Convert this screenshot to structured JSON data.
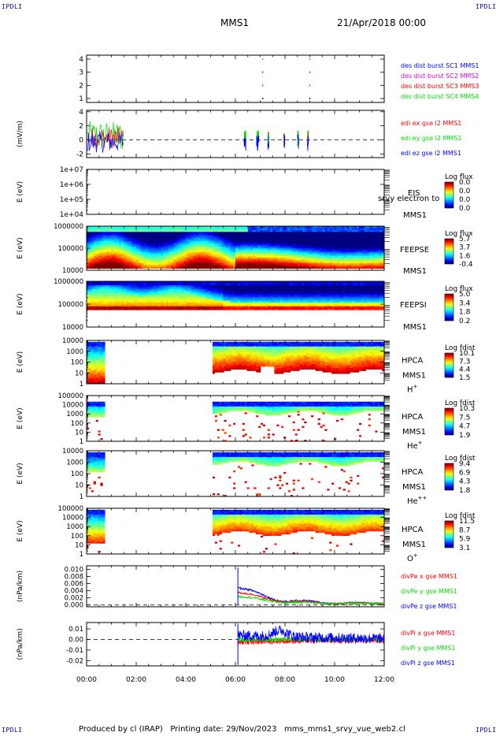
{
  "header": {
    "corner_tl": "IPDLI",
    "corner_tr": "IPDLI",
    "corner_bl": "IPDLI",
    "corner_br": "IPDLI",
    "spacecraft": "MMS1",
    "date": "21/Apr/2018 00:00"
  },
  "footer": {
    "text": "Produced by cl (IRAP)   Printing date: 29/Nov/2023   mms_mms1_srvy_vue_web2.cl"
  },
  "colors": {
    "mms1": "#0000ff",
    "mms2": "#dd00dd",
    "mms3": "#ff0000",
    "mms4": "#00dd00",
    "ex": "#ff0000",
    "ey": "#00dd00",
    "ez": "#0000ff"
  },
  "chart_data": [
    {
      "type": "scatter",
      "panel": "burst",
      "yticks": [
        "1",
        "2",
        "3",
        "4"
      ],
      "ylim": [
        0.7,
        4.3
      ],
      "series": [
        {
          "name": "des dist burst SC1 MMS1",
          "x": [
            7.1,
            9.0
          ],
          "y": [
            1,
            1
          ]
        },
        {
          "name": "des dist burst SC2 MMS2",
          "x": [
            7.1,
            9.0
          ],
          "y": [
            2,
            2
          ]
        },
        {
          "name": "des dist burst SC3 MMS3",
          "x": [
            7.1,
            9.0
          ],
          "y": [
            3,
            3
          ]
        },
        {
          "name": "des dist burst SC4 MMS4",
          "x": [
            7.1,
            9.0
          ],
          "y": [
            4,
            4
          ]
        }
      ]
    },
    {
      "type": "line",
      "panel": "edi",
      "ylabel": "(mV/m)",
      "yticks": [
        "-2",
        "0",
        "2",
        "4"
      ],
      "ylim": [
        -2.5,
        4.2
      ],
      "series": [
        {
          "name": "edi ex gse l2 MMS1"
        },
        {
          "name": "edi ey gse l2 MMS1"
        },
        {
          "name": "edi ez gse l2 MMS1"
        }
      ]
    },
    {
      "type": "heatmap",
      "panel": "eis",
      "ylabel": "E (eV)",
      "yticks": [
        "1e+04",
        "1e+05",
        "1e+06",
        "1e+07"
      ],
      "instrument": [
        "EIS",
        "MMS1"
      ],
      "overlay_text": "srvy electron to",
      "colorbar_title": "Log flux",
      "colorbar_ticks": [
        "0.0",
        "0.0",
        "0.0",
        "0.0"
      ]
    },
    {
      "type": "heatmap",
      "panel": "feepse",
      "ylabel": "E (eV)",
      "yticks": [
        "10000",
        "100000",
        "1000000"
      ],
      "instrument": [
        "FEEPSE",
        "MMS1"
      ],
      "colorbar_title": "Log flux",
      "colorbar_ticks": [
        "5.7",
        "3.7",
        "1.6",
        "-0.4"
      ]
    },
    {
      "type": "heatmap",
      "panel": "feepsi",
      "ylabel": "E (eV)",
      "yticks": [
        "10000",
        "100000",
        "1000000"
      ],
      "instrument": [
        "FEEPSI",
        "MMS1"
      ],
      "colorbar_title": "Log flux",
      "colorbar_ticks": [
        "5.0",
        "3.4",
        "1.8",
        "0.2"
      ]
    },
    {
      "type": "heatmap",
      "panel": "hpca-h",
      "ylabel": "E (eV)",
      "yticks": [
        "1",
        "10",
        "100",
        "1000",
        "10000"
      ],
      "instrument": [
        "HPCA",
        "MMS1"
      ],
      "species": "H",
      "charge": "+",
      "colorbar_title": "Log fdist",
      "colorbar_ticks": [
        "10.1",
        "7.3",
        "4.4",
        "1.5"
      ]
    },
    {
      "type": "heatmap",
      "panel": "hpca-he",
      "ylabel": "E (eV)",
      "yticks": [
        "1",
        "10",
        "100",
        "1000",
        "10000",
        "100000"
      ],
      "instrument": [
        "HPCA",
        "MMS1"
      ],
      "species": "He",
      "charge": "+",
      "colorbar_title": "Log fdist",
      "colorbar_ticks": [
        "10.3",
        "7.5",
        "4.7",
        "1.9"
      ]
    },
    {
      "type": "heatmap",
      "panel": "hpca-he2",
      "ylabel": "E (eV)",
      "yticks": [
        "1",
        "10",
        "100",
        "1000",
        "10000"
      ],
      "instrument": [
        "HPCA",
        "MMS1"
      ],
      "species": "He",
      "charge": "++",
      "colorbar_title": "Log fdist",
      "colorbar_ticks": [
        "9.4",
        "6.9",
        "4.3",
        "1.8"
      ]
    },
    {
      "type": "heatmap",
      "panel": "hpca-o",
      "ylabel": "E (eV)",
      "yticks": [
        "1",
        "10",
        "100",
        "1000",
        "10000",
        "100000"
      ],
      "instrument": [
        "HPCA",
        "MMS1"
      ],
      "species": "O",
      "charge": "+",
      "colorbar_title": "Log fdist",
      "colorbar_ticks": [
        "11.5",
        "8.7",
        "5.9",
        "3.1"
      ]
    },
    {
      "type": "line",
      "panel": "divpe",
      "ylabel": "(nPa/km)",
      "yticks": [
        "0.000",
        "0.002",
        "0.004",
        "0.006",
        "0.008",
        "0.010"
      ],
      "ylim": [
        -0.0005,
        0.011
      ],
      "series": [
        {
          "name": "divPe x gse MMS1"
        },
        {
          "name": "divPe y gse MMS1"
        },
        {
          "name": "divPe z gse MMS1"
        }
      ]
    },
    {
      "type": "line",
      "panel": "divpi",
      "ylabel": "(nPa/km)",
      "yticks": [
        "-0.02",
        "-0.01",
        "0.00",
        "0.01"
      ],
      "ylim": [
        -0.025,
        0.016
      ],
      "series": [
        {
          "name": "divPi x gse MMS1"
        },
        {
          "name": "divPi y gse MMS1"
        },
        {
          "name": "divPi z gse MMS1"
        }
      ]
    }
  ],
  "xaxis": {
    "ticks": [
      "00:00",
      "02:00",
      "04:00",
      "06:00",
      "08:00",
      "10:00",
      "12:00"
    ],
    "range_hours": [
      0,
      12
    ]
  }
}
